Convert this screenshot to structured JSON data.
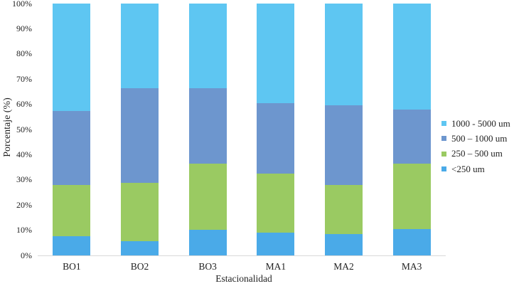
{
  "chart_data": {
    "type": "bar",
    "stacked": true,
    "percent_stacked": true,
    "title": "",
    "xlabel": "Estacionalidad",
    "ylabel": "Porcentaje (%)",
    "categories": [
      "BO1",
      "BO2",
      "BO3",
      "MA1",
      "MA2",
      "MA3"
    ],
    "series": [
      {
        "name": "<250 um",
        "color": "#4AAAE8",
        "values": [
          7.6,
          5.7,
          10.3,
          9.0,
          8.5,
          10.5
        ]
      },
      {
        "name": "250 – 500 um",
        "color": "#9ACA62",
        "values": [
          20.4,
          23.1,
          26.0,
          23.5,
          19.6,
          26.0
        ]
      },
      {
        "name": "500 – 1000 um",
        "color": "#6D96CE",
        "values": [
          29.4,
          37.7,
          30.2,
          28.0,
          31.5,
          21.5
        ]
      },
      {
        "name": "1000 - 5000 um",
        "color": "#5EC6F2",
        "values": [
          42.6,
          33.5,
          33.5,
          39.5,
          40.4,
          42.0
        ]
      }
    ],
    "y_ticks": [
      "0%",
      "10%",
      "20%",
      "30%",
      "40%",
      "50%",
      "60%",
      "70%",
      "80%",
      "90%",
      "100%"
    ],
    "ylim": [
      0,
      100
    ],
    "grid": false,
    "legend_position": "right",
    "legend_order": [
      "1000 - 5000 um",
      "500 – 1000 um",
      "250 – 500 um",
      "<250 um"
    ]
  }
}
